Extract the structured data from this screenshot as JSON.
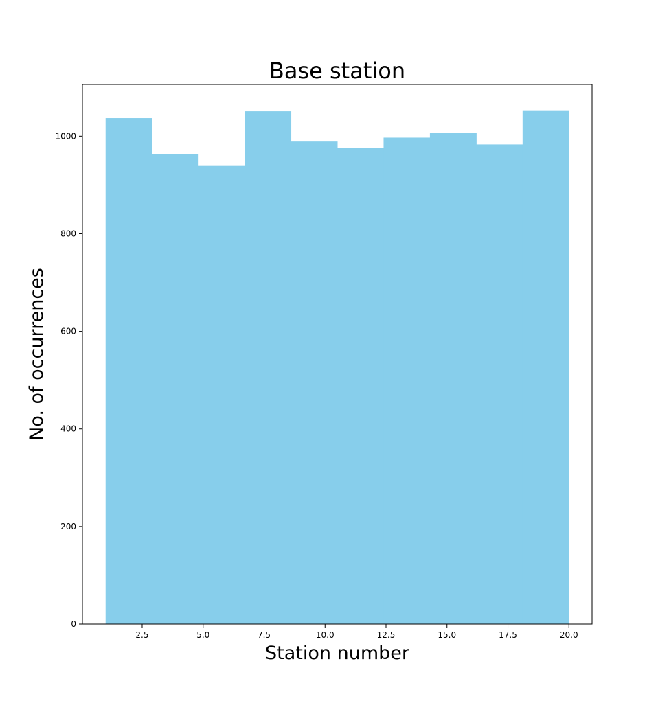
{
  "chart_data": {
    "type": "bar",
    "title": "Base station",
    "xlabel": "Station number",
    "ylabel": "No. of occurrences",
    "bin_edges": [
      1.0,
      2.9,
      4.8,
      6.7,
      8.6,
      10.5,
      12.4,
      14.3,
      16.2,
      18.1,
      20.0
    ],
    "values": [
      1037,
      963,
      939,
      1051,
      989,
      976,
      997,
      1007,
      983,
      1053
    ],
    "xlim": [
      0.05,
      20.95
    ],
    "ylim": [
      0,
      1106
    ],
    "xticks": [
      2.5,
      5.0,
      7.5,
      10.0,
      12.5,
      15.0,
      17.5,
      20.0
    ],
    "xtick_labels": [
      "2.5",
      "5.0",
      "7.5",
      "10.0",
      "12.5",
      "15.0",
      "17.5",
      "20.0"
    ],
    "yticks": [
      0,
      200,
      400,
      600,
      800,
      1000
    ],
    "ytick_labels": [
      "0",
      "200",
      "400",
      "600",
      "800",
      "1000"
    ],
    "bar_color": "#87ceeb",
    "grid": false,
    "legend": false
  }
}
